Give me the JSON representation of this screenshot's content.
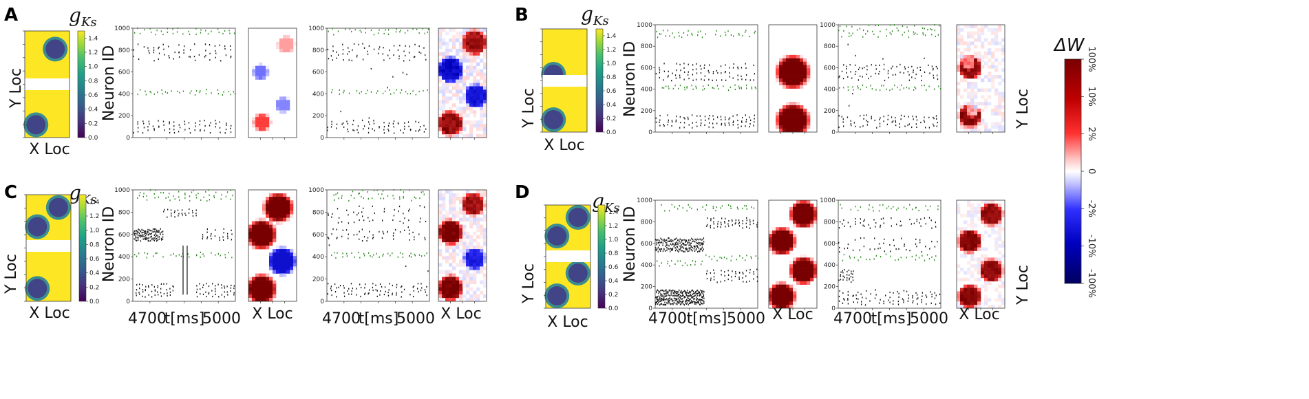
{
  "figure": {
    "panels": [
      {
        "letter": "A",
        "gks_title": "g",
        "gks_sub": "Ks",
        "conductance_ylabel": "Y Loc",
        "conductance_xlabel": "X Loc",
        "raster1_ylabel": "Neuron ID",
        "raster1_xlabel": "",
        "raster1_xtick_left": "",
        "raster2_xlabel": "",
        "raster2_xtick_left": "",
        "raster_xtick_right": "",
        "weight1_xlabel": "",
        "weight2_xlabel": "",
        "weight2_ylabel": ""
      },
      {
        "letter": "B",
        "gks_title": "g",
        "gks_sub": "Ks",
        "conductance_ylabel": "Y Loc",
        "conductance_xlabel": "X Loc",
        "raster1_ylabel": "Neuron ID",
        "raster1_xlabel": "",
        "raster1_xtick_left": "",
        "raster2_xlabel": "",
        "raster2_xtick_left": "",
        "raster_xtick_right": "",
        "weight1_xlabel": "",
        "weight2_xlabel": "",
        "weight2_ylabel": "Y Loc"
      },
      {
        "letter": "C",
        "gks_title": "g",
        "gks_sub": "Ks",
        "conductance_ylabel": "Y Loc",
        "conductance_xlabel": "X Loc",
        "raster1_ylabel": "Neuron ID",
        "raster1_xlabel": "t[ms]",
        "raster1_xtick_left": "4700",
        "raster2_xlabel": "t[ms]",
        "raster2_xtick_left": "4700",
        "raster_xtick_right": "5000",
        "weight1_xlabel": "X Loc",
        "weight2_xlabel": "X Loc",
        "weight2_ylabel": ""
      },
      {
        "letter": "D",
        "gks_title": "g",
        "gks_sub": "Ks",
        "conductance_ylabel": "Y Loc",
        "conductance_xlabel": "X Loc",
        "raster1_ylabel": "Neuron ID",
        "raster1_xlabel": "t[ms]",
        "raster1_xtick_left": "4700",
        "raster2_xlabel": "t[ms]",
        "raster2_xtick_left": "4700",
        "raster_xtick_right": "5000",
        "weight1_xlabel": "X Loc",
        "weight2_xlabel": "X Loc",
        "weight2_ylabel": "Y Loc"
      }
    ],
    "colorbar_title": "ΔW"
  },
  "chart_data": {
    "type": "raster",
    "description": "Spike raster plots (Neuron ID vs time) with g_Ks conductance maps and synaptic weight change (ΔW) maps for four conditions A-D",
    "conductance_colorbar": {
      "ticks": [
        "0.0",
        "0.2",
        "0.4",
        "0.6",
        "0.8",
        "1.0",
        "1.2",
        "1.4"
      ],
      "range": [
        0.0,
        1.5
      ],
      "colormap": "viridis"
    },
    "raster_yaxis": {
      "range": [
        0,
        1000
      ],
      "ticks": [
        "0",
        "200",
        "400",
        "600",
        "800",
        "1000"
      ],
      "label": "Neuron ID"
    },
    "raster_xaxis": {
      "range": [
        4700,
        5000
      ],
      "label": "t[ms]"
    },
    "weight_colorbar": {
      "title": "ΔW",
      "ticks": [
        "100%",
        "10%",
        "2%",
        "0",
        "-2%",
        "-10%",
        "-100%"
      ],
      "colormap": "seismic"
    },
    "panels": [
      {
        "id": "A",
        "gks_low_spots": [
          {
            "x": 0.68,
            "y": 0.17
          },
          {
            "x": 0.25,
            "y": 0.88
          }
        ],
        "raster1_bands": [
          {
            "lo": 940,
            "hi": 1000,
            "color": "green",
            "rows": 2,
            "t0": 0.0,
            "t1": 1.0,
            "period": 0.055,
            "jitter": 0.6,
            "density": 0.9
          },
          {
            "lo": 700,
            "hi": 860,
            "color": "black",
            "rows": 4,
            "t0": 0.0,
            "t1": 1.0,
            "period": 0.05,
            "jitter": 0.3,
            "density": 0.8
          },
          {
            "lo": 390,
            "hi": 440,
            "color": "green",
            "rows": 2,
            "t0": 0.0,
            "t1": 1.0,
            "period": 0.055,
            "jitter": 0.6,
            "density": 0.9
          },
          {
            "lo": 40,
            "hi": 160,
            "color": "black",
            "rows": 4,
            "t0": 0.0,
            "t1": 1.0,
            "period": 0.05,
            "jitter": 0.3,
            "density": 0.8
          }
        ],
        "weights1": [
          {
            "x": 0.78,
            "y": 0.15,
            "v": 0.25,
            "r": 0.09
          },
          {
            "x": 0.25,
            "y": 0.4,
            "v": -0.35,
            "r": 0.08
          },
          {
            "x": 0.72,
            "y": 0.7,
            "v": -0.3,
            "r": 0.08
          },
          {
            "x": 0.28,
            "y": 0.86,
            "v": 0.5,
            "r": 0.09
          }
        ],
        "raster2_bands": [
          {
            "lo": 940,
            "hi": 1000,
            "color": "green",
            "rows": 2,
            "t0": 0.0,
            "t1": 1.0,
            "period": 0.055,
            "jitter": 0.6,
            "density": 0.9
          },
          {
            "lo": 700,
            "hi": 860,
            "color": "black",
            "rows": 4,
            "t0": 0.0,
            "t1": 1.0,
            "period": 0.05,
            "jitter": 0.5,
            "density": 0.75
          },
          {
            "lo": 390,
            "hi": 440,
            "color": "green",
            "rows": 2,
            "t0": 0.0,
            "t1": 1.0,
            "period": 0.055,
            "jitter": 0.6,
            "density": 0.9
          },
          {
            "lo": 40,
            "hi": 160,
            "color": "black",
            "rows": 4,
            "t0": 0.0,
            "t1": 1.0,
            "period": 0.05,
            "jitter": 0.5,
            "density": 0.75
          },
          {
            "lo": 160,
            "hi": 700,
            "color": "black",
            "rows": 6,
            "t0": 0.0,
            "t1": 1.0,
            "period": 0.09,
            "jitter": 1.0,
            "density": 0.12
          }
        ],
        "weights2": [
          {
            "x": 0.75,
            "y": 0.13,
            "v": 0.85,
            "r": 0.13
          },
          {
            "x": 0.25,
            "y": 0.38,
            "v": -0.9,
            "r": 0.13
          },
          {
            "x": 0.78,
            "y": 0.62,
            "v": -0.8,
            "r": 0.12
          },
          {
            "x": 0.25,
            "y": 0.87,
            "v": 0.9,
            "r": 0.13
          }
        ],
        "weights2_noise": 0.25
      },
      {
        "id": "B",
        "gks_low_spots": [
          {
            "x": 0.25,
            "y": 0.44
          },
          {
            "x": 0.25,
            "y": 0.88
          }
        ],
        "raster1_bands": [
          {
            "lo": 880,
            "hi": 950,
            "color": "green",
            "rows": 2,
            "t0": 0.0,
            "t1": 1.0,
            "period": 0.045,
            "jitter": 0.9,
            "density": 0.9
          },
          {
            "lo": 480,
            "hi": 640,
            "color": "black",
            "rows": 4,
            "t0": 0.0,
            "t1": 1.0,
            "period": 0.04,
            "jitter": 0.3,
            "density": 0.85
          },
          {
            "lo": 390,
            "hi": 440,
            "color": "green",
            "rows": 2,
            "t0": 0.0,
            "t1": 1.0,
            "period": 0.045,
            "jitter": 0.9,
            "density": 0.9
          },
          {
            "lo": 40,
            "hi": 160,
            "color": "black",
            "rows": 4,
            "t0": 0.0,
            "t1": 1.0,
            "period": 0.04,
            "jitter": 0.3,
            "density": 0.85
          }
        ],
        "weights1": [
          {
            "x": 0.5,
            "y": 0.44,
            "v": 1.0,
            "r": 0.17
          },
          {
            "x": 0.5,
            "y": 0.89,
            "v": 1.0,
            "r": 0.17
          }
        ],
        "raster2_bands": [
          {
            "lo": 880,
            "hi": 1000,
            "color": "green",
            "rows": 3,
            "t0": 0.0,
            "t1": 1.0,
            "period": 0.045,
            "jitter": 0.9,
            "density": 0.8
          },
          {
            "lo": 480,
            "hi": 640,
            "color": "black",
            "rows": 4,
            "t0": 0.0,
            "t1": 1.0,
            "period": 0.04,
            "jitter": 0.5,
            "density": 0.75
          },
          {
            "lo": 390,
            "hi": 440,
            "color": "green",
            "rows": 2,
            "t0": 0.0,
            "t1": 1.0,
            "period": 0.045,
            "jitter": 0.9,
            "density": 0.9
          },
          {
            "lo": 40,
            "hi": 160,
            "color": "black",
            "rows": 4,
            "t0": 0.0,
            "t1": 1.0,
            "period": 0.04,
            "jitter": 0.5,
            "density": 0.75
          },
          {
            "lo": 160,
            "hi": 880,
            "color": "black",
            "rows": 6,
            "t0": 0.0,
            "t1": 1.0,
            "period": 0.1,
            "jitter": 1.0,
            "density": 0.1
          }
        ],
        "weights2": [
          {
            "x": 0.28,
            "y": 0.4,
            "v": 0.95,
            "r": 0.12
          },
          {
            "x": 0.28,
            "y": 0.85,
            "v": 0.95,
            "r": 0.12
          },
          {
            "x": 0.25,
            "y": 0.36,
            "v": -0.6,
            "r": 0.07
          },
          {
            "x": 0.32,
            "y": 0.8,
            "v": -0.7,
            "r": 0.07
          }
        ],
        "weights2_noise": 0.2
      },
      {
        "id": "C",
        "gks_low_spots": [
          {
            "x": 0.72,
            "y": 0.12
          },
          {
            "x": 0.25,
            "y": 0.3
          },
          {
            "x": 0.25,
            "y": 0.88
          }
        ],
        "raster1_bands": [
          {
            "lo": 900,
            "hi": 1000,
            "color": "green",
            "rows": 3,
            "t0": 0.0,
            "t1": 1.0,
            "period": 0.05,
            "jitter": 0.8,
            "density": 0.85
          },
          {
            "lo": 750,
            "hi": 840,
            "color": "black",
            "rows": 3,
            "t0": 0.3,
            "t1": 0.62,
            "period": 0.035,
            "jitter": 0.3,
            "density": 0.9
          },
          {
            "lo": 540,
            "hi": 650,
            "color": "black",
            "rows": 5,
            "t0": 0.0,
            "t1": 0.3,
            "period": 0.012,
            "jitter": 0.4,
            "density": 0.9
          },
          {
            "lo": 540,
            "hi": 650,
            "color": "black",
            "rows": 4,
            "t0": 0.68,
            "t1": 1.0,
            "period": 0.04,
            "jitter": 0.3,
            "density": 0.85
          },
          {
            "lo": 390,
            "hi": 440,
            "color": "green",
            "rows": 2,
            "t0": 0.0,
            "t1": 1.0,
            "period": 0.05,
            "jitter": 0.8,
            "density": 0.85
          },
          {
            "lo": 40,
            "hi": 160,
            "color": "black",
            "rows": 4,
            "t0": 0.0,
            "t1": 0.4,
            "period": 0.03,
            "jitter": 0.3,
            "density": 0.85
          },
          {
            "lo": 40,
            "hi": 160,
            "color": "black",
            "rows": 4,
            "t0": 0.62,
            "t1": 1.0,
            "period": 0.03,
            "jitter": 0.3,
            "density": 0.85
          }
        ],
        "raster1_vlines": [
          0.49,
          0.53
        ],
        "weights1": [
          {
            "x": 0.62,
            "y": 0.16,
            "v": 1.0,
            "r": 0.15
          },
          {
            "x": 0.27,
            "y": 0.4,
            "v": 1.0,
            "r": 0.15
          },
          {
            "x": 0.7,
            "y": 0.64,
            "v": -0.85,
            "r": 0.14
          },
          {
            "x": 0.27,
            "y": 0.89,
            "v": 1.0,
            "r": 0.15
          }
        ],
        "raster2_bands": [
          {
            "lo": 900,
            "hi": 1000,
            "color": "green",
            "rows": 3,
            "t0": 0.0,
            "t1": 1.0,
            "period": 0.05,
            "jitter": 0.8,
            "density": 0.8
          },
          {
            "lo": 700,
            "hi": 860,
            "color": "black",
            "rows": 4,
            "t0": 0.0,
            "t1": 1.0,
            "period": 0.05,
            "jitter": 0.6,
            "density": 0.55
          },
          {
            "lo": 540,
            "hi": 650,
            "color": "black",
            "rows": 4,
            "t0": 0.0,
            "t1": 1.0,
            "period": 0.05,
            "jitter": 0.6,
            "density": 0.6
          },
          {
            "lo": 390,
            "hi": 440,
            "color": "green",
            "rows": 2,
            "t0": 0.0,
            "t1": 1.0,
            "period": 0.05,
            "jitter": 0.8,
            "density": 0.85
          },
          {
            "lo": 40,
            "hi": 160,
            "color": "black",
            "rows": 4,
            "t0": 0.0,
            "t1": 1.0,
            "period": 0.04,
            "jitter": 0.5,
            "density": 0.75
          },
          {
            "lo": 160,
            "hi": 900,
            "color": "black",
            "rows": 6,
            "t0": 0.0,
            "t1": 1.0,
            "period": 0.1,
            "jitter": 1.0,
            "density": 0.12
          }
        ],
        "weights2": [
          {
            "x": 0.72,
            "y": 0.13,
            "v": 0.85,
            "r": 0.12
          },
          {
            "x": 0.25,
            "y": 0.38,
            "v": 1.0,
            "r": 0.13
          },
          {
            "x": 0.75,
            "y": 0.62,
            "v": -0.7,
            "r": 0.11
          },
          {
            "x": 0.25,
            "y": 0.88,
            "v": 1.0,
            "r": 0.13
          }
        ],
        "weights2_noise": 0.22
      },
      {
        "id": "D",
        "gks_low_spots": [
          {
            "x": 0.72,
            "y": 0.12
          },
          {
            "x": 0.25,
            "y": 0.3
          },
          {
            "x": 0.72,
            "y": 0.66
          },
          {
            "x": 0.25,
            "y": 0.88
          }
        ],
        "raster1_bands": [
          {
            "lo": 900,
            "hi": 960,
            "color": "green",
            "rows": 2,
            "t0": 0.0,
            "t1": 1.0,
            "period": 0.05,
            "jitter": 0.8,
            "density": 0.85
          },
          {
            "lo": 740,
            "hi": 840,
            "color": "black",
            "rows": 4,
            "t0": 0.5,
            "t1": 1.0,
            "period": 0.035,
            "jitter": 0.3,
            "density": 0.85
          },
          {
            "lo": 520,
            "hi": 650,
            "color": "black",
            "rows": 5,
            "t0": 0.0,
            "t1": 0.48,
            "period": 0.012,
            "jitter": 0.4,
            "density": 0.9
          },
          {
            "lo": 440,
            "hi": 500,
            "color": "green",
            "rows": 2,
            "t0": 0.48,
            "t1": 1.0,
            "period": 0.05,
            "jitter": 0.8,
            "density": 0.85
          },
          {
            "lo": 390,
            "hi": 440,
            "color": "green",
            "rows": 2,
            "t0": 0.0,
            "t1": 0.48,
            "period": 0.05,
            "jitter": 0.8,
            "density": 0.85
          },
          {
            "lo": 240,
            "hi": 360,
            "color": "black",
            "rows": 4,
            "t0": 0.5,
            "t1": 1.0,
            "period": 0.035,
            "jitter": 0.3,
            "density": 0.85
          },
          {
            "lo": 30,
            "hi": 170,
            "color": "black",
            "rows": 6,
            "t0": 0.0,
            "t1": 0.48,
            "period": 0.01,
            "jitter": 0.4,
            "density": 0.9
          }
        ],
        "weights1": [
          {
            "x": 0.72,
            "y": 0.13,
            "v": 1.0,
            "r": 0.14
          },
          {
            "x": 0.27,
            "y": 0.38,
            "v": 1.0,
            "r": 0.14
          },
          {
            "x": 0.72,
            "y": 0.65,
            "v": 1.0,
            "r": 0.14
          },
          {
            "x": 0.27,
            "y": 0.89,
            "v": 1.0,
            "r": 0.14
          }
        ],
        "raster2_bands": [
          {
            "lo": 900,
            "hi": 960,
            "color": "green",
            "rows": 2,
            "t0": 0.0,
            "t1": 1.0,
            "period": 0.05,
            "jitter": 0.8,
            "density": 0.8
          },
          {
            "lo": 740,
            "hi": 840,
            "color": "black",
            "rows": 4,
            "t0": 0.0,
            "t1": 1.0,
            "period": 0.05,
            "jitter": 0.6,
            "density": 0.5
          },
          {
            "lo": 520,
            "hi": 650,
            "color": "black",
            "rows": 4,
            "t0": 0.0,
            "t1": 1.0,
            "period": 0.05,
            "jitter": 0.6,
            "density": 0.55
          },
          {
            "lo": 440,
            "hi": 500,
            "color": "green",
            "rows": 2,
            "t0": 0.0,
            "t1": 1.0,
            "period": 0.05,
            "jitter": 0.8,
            "density": 0.75
          },
          {
            "lo": 240,
            "hi": 360,
            "color": "black",
            "rows": 4,
            "t0": 0.0,
            "t1": 0.15,
            "period": 0.02,
            "jitter": 0.4,
            "density": 0.9
          },
          {
            "lo": 30,
            "hi": 170,
            "color": "black",
            "rows": 5,
            "t0": 0.0,
            "t1": 1.0,
            "period": 0.045,
            "jitter": 0.5,
            "density": 0.65
          }
        ],
        "weights2": [
          {
            "x": 0.72,
            "y": 0.13,
            "v": 0.9,
            "r": 0.12
          },
          {
            "x": 0.27,
            "y": 0.38,
            "v": 0.95,
            "r": 0.12
          },
          {
            "x": 0.72,
            "y": 0.65,
            "v": 0.9,
            "r": 0.12
          },
          {
            "x": 0.27,
            "y": 0.89,
            "v": 0.95,
            "r": 0.12
          }
        ],
        "weights2_noise": 0.15
      }
    ]
  }
}
